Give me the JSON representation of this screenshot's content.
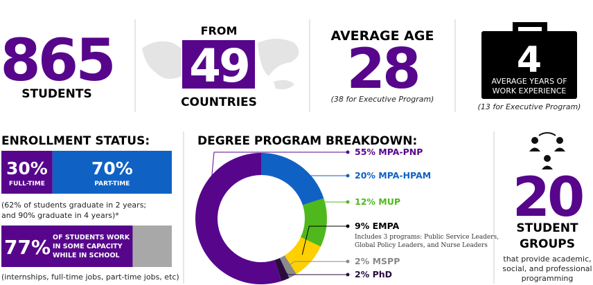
{
  "stats": {
    "students": {
      "number": 865,
      "label": "STUDENTS"
    },
    "countries": {
      "prefix": "FROM",
      "number": 49,
      "label": "COUNTRIES"
    },
    "age": {
      "title": "AVERAGE AGE",
      "number": 28,
      "note": "(38 for Executive Program)"
    },
    "experience": {
      "number": 4,
      "label": [
        "AVERAGE YEARS OF",
        "WORK EXPERIENCE"
      ],
      "note": "(13 for Executive Program)"
    }
  },
  "enrollment": {
    "title": "ENROLLMENT STATUS:",
    "segments": [
      {
        "name": "FULL-TIME",
        "value": 30,
        "value_label": "30%",
        "color": "#57068c"
      },
      {
        "name": "PART-TIME",
        "value": 70,
        "value_label": "70%",
        "color": "#0f62c4"
      }
    ],
    "note": [
      "(62% of students graduate in 2 years;",
      "and 90% graduate in 4 years)*"
    ],
    "work": {
      "value": 77,
      "value_label": "77%",
      "xlim": [
        0,
        100
      ],
      "color": "#57068c",
      "text": [
        "OF STUDENTS WORK",
        "IN SOME CAPACITY",
        "WHILE IN SCHOOL"
      ],
      "note": "(internships, full-time jobs, part-time jobs, etc)"
    }
  },
  "degree": {
    "title": "DEGREE PROGRAM BREAKDOWN:",
    "series": [
      {
        "name": "MPA-PNP",
        "value": 55,
        "value_label": "55%",
        "color": "#57068c"
      },
      {
        "name": "MPA-HPAM",
        "value": 20,
        "value_label": "20%",
        "color": "#0f62c4"
      },
      {
        "name": "MUP",
        "value": 12,
        "value_label": "12%",
        "color": "#4fb81c"
      },
      {
        "name": "EMPA",
        "value": 9,
        "value_label": "9%",
        "color": "#ffd000",
        "detail": [
          "Includes 3 programs: Public Service Leaders,",
          "Global Policy Leaders, and Nurse Leaders"
        ]
      },
      {
        "name": "MSPP",
        "value": 2,
        "value_label": "2%",
        "color": "#8a8a8a"
      },
      {
        "name": "PhD",
        "value": 2,
        "value_label": "2%",
        "color": "#2a0c3f"
      }
    ]
  },
  "groups": {
    "number": 20,
    "label": [
      "STUDENT",
      "GROUPS"
    ],
    "note": [
      "that provide academic,",
      "social, and professional",
      "programming"
    ]
  }
}
